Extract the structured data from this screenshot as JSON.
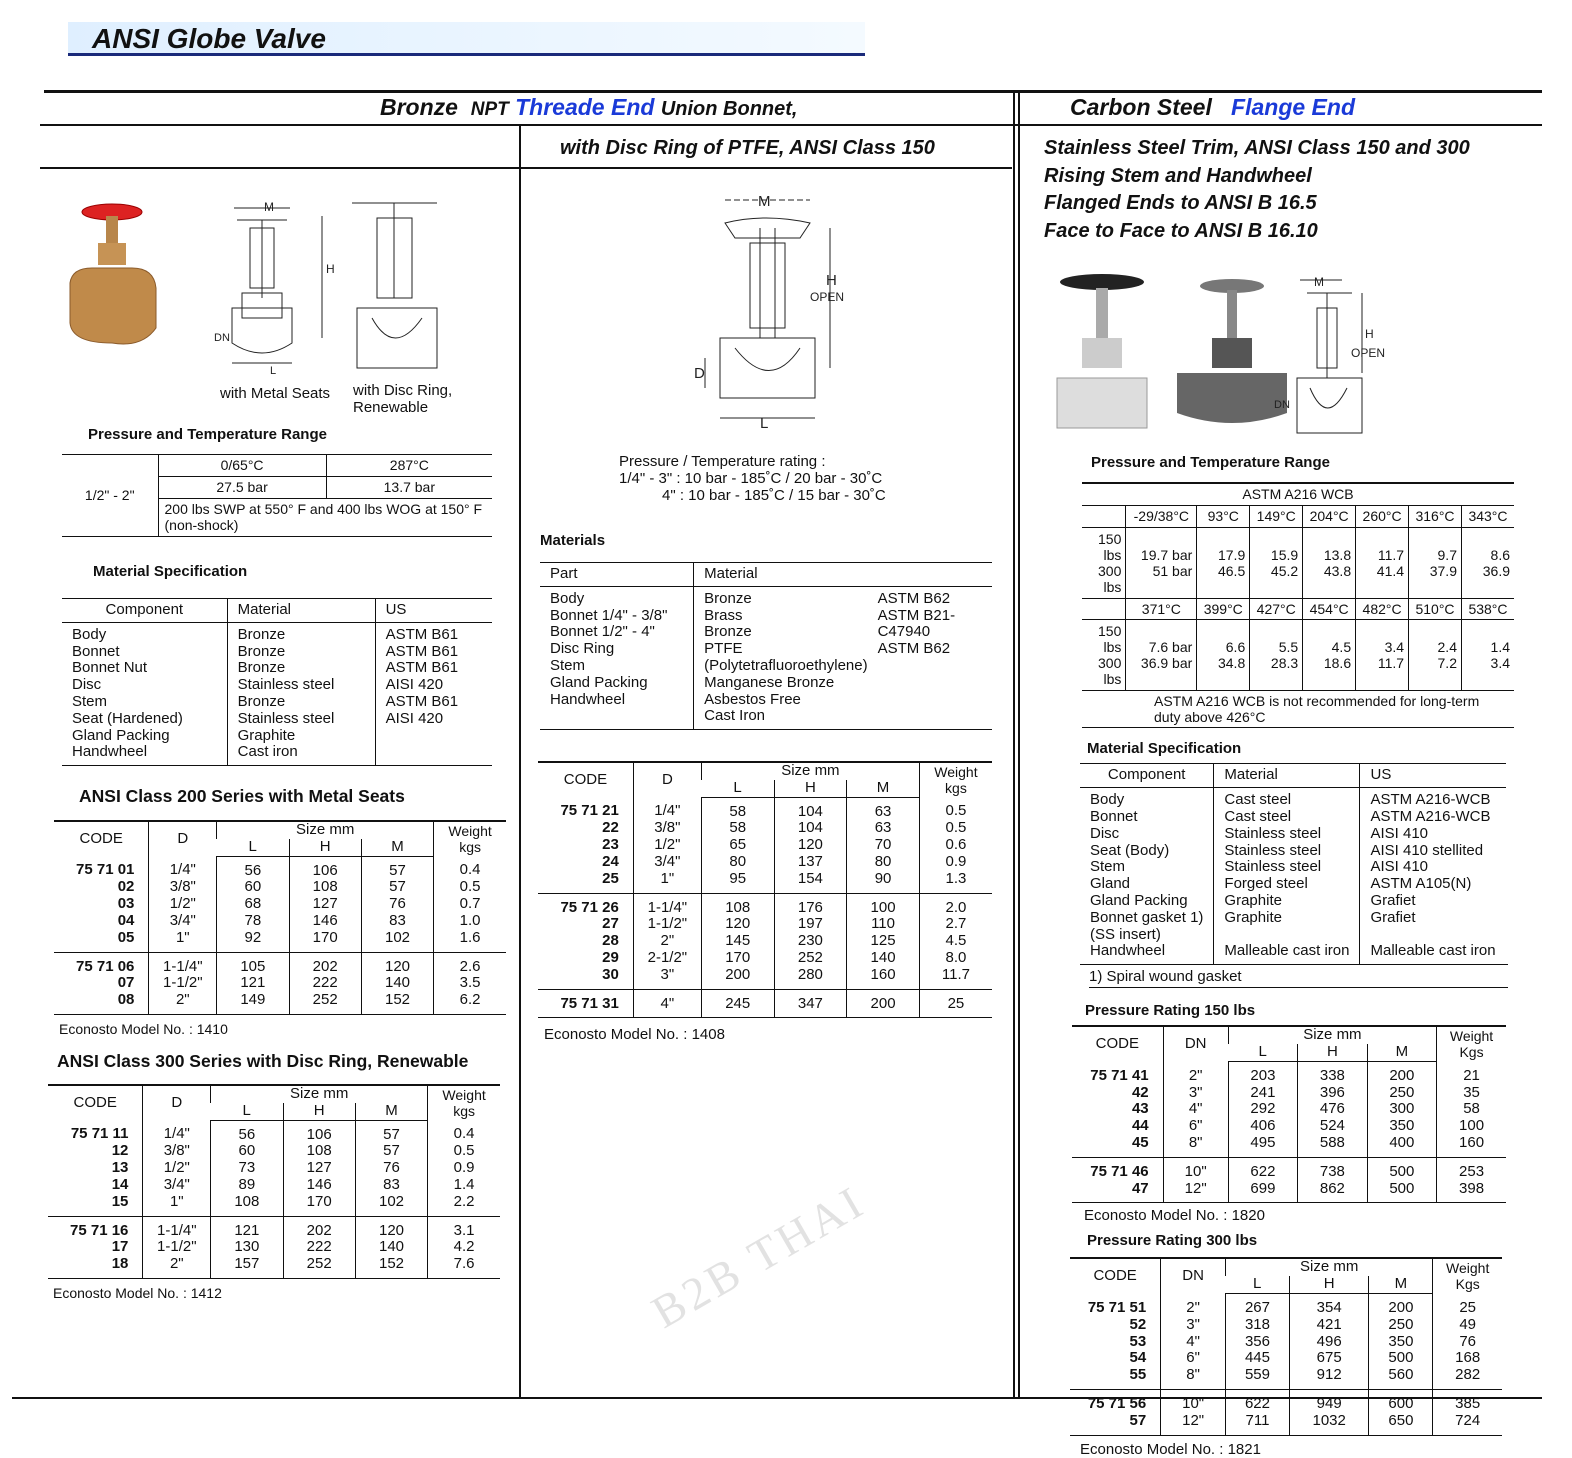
{
  "title": "ANSI Globe Valve",
  "header": {
    "bronze": "Bronze",
    "npt": "NPT",
    "thread": "Threade End",
    "union": "Union Bonnet,",
    "disc": "with Disc Ring of PTFE, ANSI Class 150",
    "carbon": "Carbon Steel",
    "flange": "Flange End"
  },
  "colors": {
    "accent": "#1a3ad8",
    "banner": "#dfefff"
  },
  "left": {
    "label_metal": "with Metal Seats",
    "label_disc": "with Disc Ring,",
    "label_disc2": "Renewable",
    "diagram": {
      "m": "M",
      "h": "H",
      "dn": "DN",
      "l": "L"
    },
    "pt_title": "Pressure and Temperature Range",
    "pt": {
      "size": "1/2\" - 2\"",
      "t1": "0/65°C",
      "t2": "287°C",
      "p1": "27.5 bar",
      "p2": "13.7 bar",
      "note": "200 lbs SWP at 550° F and 400 lbs WOG at 150° F (non-shock)"
    },
    "mat_title": "Material Specification",
    "mat": {
      "headers": [
        "Component",
        "Material",
        "US"
      ],
      "cols": [
        "Body\nBonnet\nBonnet Nut\nDisc\nStem\nSeat (Hardened)\nGland Packing\nHandwheel",
        "Bronze\nBronze\nBronze\nStainless steel\nBronze\nStainless steel\nGraphite\nCast iron",
        "ASTM B61\nASTM B61\nASTM B61\nAISI 420\nASTM B61\nAISI 420"
      ]
    },
    "t200_title": "ANSI Class 200 Series with Metal Seats",
    "t200": {
      "headers": [
        "CODE",
        "D",
        "Size mm",
        "L",
        "H",
        "M",
        "Weight kgs"
      ],
      "groups": [
        [
          [
            "75 71 01",
            "1/4\"",
            "56",
            "106",
            "57",
            "0.4"
          ],
          [
            "02",
            "3/8\"",
            "60",
            "108",
            "57",
            "0.5"
          ],
          [
            "03",
            "1/2\"",
            "68",
            "127",
            "76",
            "0.7"
          ],
          [
            "04",
            "3/4\"",
            "78",
            "146",
            "83",
            "1.0"
          ],
          [
            "05",
            "1\"",
            "92",
            "170",
            "102",
            "1.6"
          ]
        ],
        [
          [
            "75 71 06",
            "1-1/4\"",
            "105",
            "202",
            "120",
            "2.6"
          ],
          [
            "07",
            "1-1/2\"",
            "121",
            "222",
            "140",
            "3.5"
          ],
          [
            "08",
            "2\"",
            "149",
            "252",
            "152",
            "6.2"
          ]
        ]
      ]
    },
    "t200_model": "Econosto Model No. : 1410",
    "t300_title": "ANSI Class 300 Series with Disc Ring, Renewable",
    "t300": {
      "headers": [
        "CODE",
        "D",
        "Size mm",
        "L",
        "H",
        "M",
        "Weight kgs"
      ],
      "groups": [
        [
          [
            "75 71 11",
            "1/4\"",
            "56",
            "106",
            "57",
            "0.4"
          ],
          [
            "12",
            "3/8\"",
            "60",
            "108",
            "57",
            "0.5"
          ],
          [
            "13",
            "1/2\"",
            "73",
            "127",
            "76",
            "0.9"
          ],
          [
            "14",
            "3/4\"",
            "89",
            "146",
            "83",
            "1.4"
          ],
          [
            "15",
            "1\"",
            "108",
            "170",
            "102",
            "2.2"
          ]
        ],
        [
          [
            "75 71 16",
            "1-1/4\"",
            "121",
            "202",
            "120",
            "3.1"
          ],
          [
            "17",
            "1-1/2\"",
            "130",
            "222",
            "140",
            "4.2"
          ],
          [
            "18",
            "2\"",
            "157",
            "252",
            "152",
            "7.6"
          ]
        ]
      ]
    },
    "t300_model": "Econosto Model No. : 1412"
  },
  "mid": {
    "diagram": {
      "m": "M",
      "h": "H",
      "open": "OPEN",
      "d": "D",
      "l": "L"
    },
    "pt1": "Pressure / Temperature rating :",
    "pt2": "1/4\" - 3\" : 10 bar - 185˚C / 20 bar -  30˚C",
    "pt3": "4\" : 10 bar - 185˚C / 15 bar -  30˚C",
    "mat_title": "Materials",
    "mat": {
      "headers": [
        "Part",
        "Material",
        ""
      ],
      "cols": [
        "Body\nBonnet 1/4\" - 3/8\"\nBonnet 1/2\" - 4\"\nDisc Ring\nStem\nGland Packing\nHandwheel",
        "Bronze\nBrass\nBronze\nPTFE (Polytetrafluoroethylene)\nManganese Bronze\nAsbestos Free\nCast Iron",
        "ASTM B62\nASTM B21-C47940\nASTM B62"
      ]
    },
    "table": {
      "headers": [
        "CODE",
        "D",
        "Size mm",
        "L",
        "H",
        "M",
        "Weight kgs"
      ],
      "groups": [
        [
          [
            "75 71 21",
            "1/4\"",
            "58",
            "104",
            "63",
            "0.5"
          ],
          [
            "22",
            "3/8\"",
            "58",
            "104",
            "63",
            "0.5"
          ],
          [
            "23",
            "1/2\"",
            "65",
            "120",
            "70",
            "0.6"
          ],
          [
            "24",
            "3/4\"",
            "80",
            "137",
            "80",
            "0.9"
          ],
          [
            "25",
            "1\"",
            "95",
            "154",
            "90",
            "1.3"
          ]
        ],
        [
          [
            "75 71 26",
            "1-1/4\"",
            "108",
            "176",
            "100",
            "2.0"
          ],
          [
            "27",
            "1-1/2\"",
            "120",
            "197",
            "110",
            "2.7"
          ],
          [
            "28",
            "2\"",
            "145",
            "230",
            "125",
            "4.5"
          ],
          [
            "29",
            "2-1/2\"",
            "170",
            "252",
            "140",
            "8.0"
          ],
          [
            "30",
            "3\"",
            "200",
            "280",
            "160",
            "11.7"
          ]
        ],
        [
          [
            "75 71 31",
            "4\"",
            "245",
            "347",
            "200",
            "25"
          ]
        ]
      ]
    },
    "model": "Econosto Model No. : 1408",
    "watermark": "B2B THAI"
  },
  "right": {
    "lines": [
      "Stainless Steel Trim, ANSI Class 150 and 300",
      "Rising Stem and Handwheel",
      "Flanged Ends to ANSI B 16.5",
      "Face to Face to ANSI B 16.10"
    ],
    "diagram": {
      "m": "M",
      "h": "H",
      "open": "OPEN",
      "dn": "DN",
      "l": "L"
    },
    "pt_title": "Pressure and Temperature Range",
    "astm": {
      "title": "ASTM A216 WCB",
      "temps1": [
        "-29/38°C",
        "93°C",
        "149°C",
        "204°C",
        "260°C",
        "316°C",
        "343°C"
      ],
      "temps2": [
        "371°C",
        "399°C",
        "427°C",
        "454°C",
        "482°C",
        "510°C",
        "538°C"
      ],
      "classes": "150 lbs\n300 lbs",
      "vals1": [
        "19.7 bar\n51 bar",
        "17.9\n46.5",
        "15.9\n45.2",
        "13.8\n43.8",
        "11.7\n41.4",
        "9.7\n37.9",
        "8.6\n36.9"
      ],
      "vals2": [
        "7.6 bar\n36.9 bar",
        "6.6\n34.8",
        "5.5\n28.3",
        "4.5\n18.6",
        "3.4\n11.7",
        "2.4\n7.2",
        "1.4\n3.4"
      ],
      "note": "ASTM A216 WCB is not recommended for long-term duty above 426°C"
    },
    "mat_title": "Material Specification",
    "mat": {
      "headers": [
        "Component",
        "Material",
        "US"
      ],
      "cols": [
        "Body\nBonnet\nDisc\nSeat (Body)\nStem\nGland\nGland Packing\nBonnet gasket 1)\n(SS insert)\nHandwheel",
        "Cast steel\nCast steel\nStainless steel\nStainless steel\nStainless steel\nForged steel\nGraphite\nGraphite\n\nMalleable cast iron",
        "ASTM A216-WCB\nASTM A216-WCB\nAISI 410\nAISI 410 stellited\nAISI 410\nASTM A105(N)\nGrafiet\nGrafiet\n\nMalleable cast iron"
      ]
    },
    "mat_note": "1)  Spiral wound gasket",
    "t150_title": "Pressure Rating 150 lbs",
    "t150": {
      "headers": [
        "CODE",
        "DN",
        "Size mm",
        "L",
        "H",
        "M",
        "Weight Kgs"
      ],
      "groups": [
        [
          [
            "75 71 41",
            "2\"",
            "203",
            "338",
            "200",
            "21"
          ],
          [
            "42",
            "3\"",
            "241",
            "396",
            "250",
            "35"
          ],
          [
            "43",
            "4\"",
            "292",
            "476",
            "300",
            "58"
          ],
          [
            "44",
            "6\"",
            "406",
            "524",
            "350",
            "100"
          ],
          [
            "45",
            "8\"",
            "495",
            "588",
            "400",
            "160"
          ]
        ],
        [
          [
            "75 71 46",
            "10\"",
            "622",
            "738",
            "500",
            "253"
          ],
          [
            "47",
            "12\"",
            "699",
            "862",
            "500",
            "398"
          ]
        ]
      ]
    },
    "t150_model": "Econosto Model No. : 1820",
    "t300_title": "Pressure Rating 300 lbs",
    "t300": {
      "headers": [
        "CODE",
        "DN",
        "Size mm",
        "L",
        "H",
        "M",
        "Weight Kgs"
      ],
      "groups": [
        [
          [
            "75 71 51",
            "2\"",
            "267",
            "354",
            "200",
            "25"
          ],
          [
            "52",
            "3\"",
            "318",
            "421",
            "250",
            "49"
          ],
          [
            "53",
            "4\"",
            "356",
            "496",
            "350",
            "76"
          ],
          [
            "54",
            "6\"",
            "445",
            "675",
            "500",
            "168"
          ],
          [
            "55",
            "8\"",
            "559",
            "912",
            "560",
            "282"
          ]
        ],
        [
          [
            "75 71 56",
            "10\"",
            "622",
            "949",
            "600",
            "385"
          ],
          [
            "57",
            "12\"",
            "711",
            "1032",
            "650",
            "724"
          ]
        ]
      ]
    },
    "t300_model": "Econosto Model No. : 1821"
  }
}
